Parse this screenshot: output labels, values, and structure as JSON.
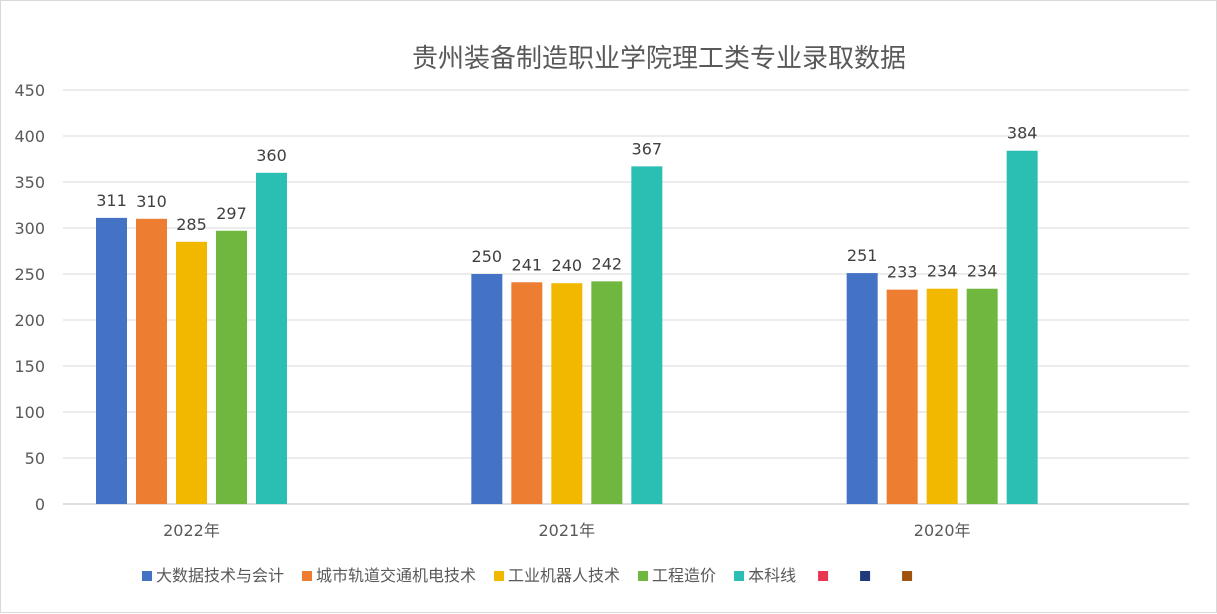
{
  "chart_data": {
    "type": "bar",
    "title": "贵州装备制造职业学院理工类专业录取数据",
    "categories": [
      "2022年",
      "2021年",
      "2020年"
    ],
    "ylim": [
      0,
      450
    ],
    "yticks": [
      0,
      50,
      100,
      150,
      200,
      250,
      300,
      350,
      400,
      450
    ],
    "grid": true,
    "legend_position": "bottom",
    "series": [
      {
        "name": "大数据技术与会计",
        "color": "#4472C4",
        "values": [
          311,
          250,
          251
        ]
      },
      {
        "name": "城市轨道交通机电技术",
        "color": "#ED7D31",
        "values": [
          310,
          241,
          233
        ]
      },
      {
        "name": "工业机器人技术",
        "color": "#F2B800",
        "values": [
          285,
          240,
          234
        ]
      },
      {
        "name": "工程造价",
        "color": "#70B740",
        "values": [
          297,
          242,
          234
        ]
      },
      {
        "name": "本科线",
        "color": "#2BBFB3",
        "values": [
          360,
          367,
          384
        ]
      }
    ],
    "extra_legend_swatches": [
      "#E8384F",
      "#1F3A7A",
      "#A0520F"
    ]
  }
}
